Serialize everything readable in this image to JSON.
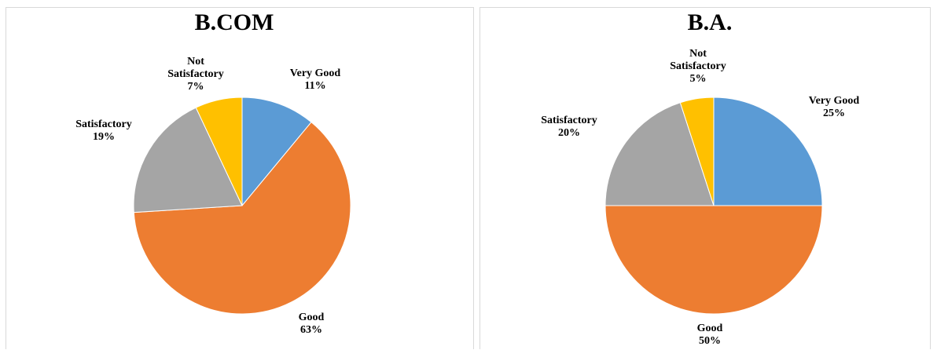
{
  "chart_data": [
    {
      "type": "pie",
      "title": "B.COM",
      "categories": [
        "Very Good",
        "Good",
        "Satisfactory",
        "Not Satisfactory"
      ],
      "values": [
        11,
        63,
        19,
        7
      ],
      "value_labels": [
        "11%",
        "63%",
        "19%",
        "7%"
      ],
      "colors": [
        "#5b9bd5",
        "#ed7d31",
        "#a5a5a5",
        "#ffc000"
      ],
      "legend": "none"
    },
    {
      "type": "pie",
      "title": "B.A.",
      "categories": [
        "Very Good",
        "Good",
        "Satisfactory",
        "Not Satisfactory"
      ],
      "values": [
        25,
        50,
        20,
        5
      ],
      "value_labels": [
        "25%",
        "50%",
        "20%",
        "5%"
      ],
      "colors": [
        "#5b9bd5",
        "#ed7d31",
        "#a5a5a5",
        "#ffc000"
      ],
      "legend": "none"
    }
  ]
}
